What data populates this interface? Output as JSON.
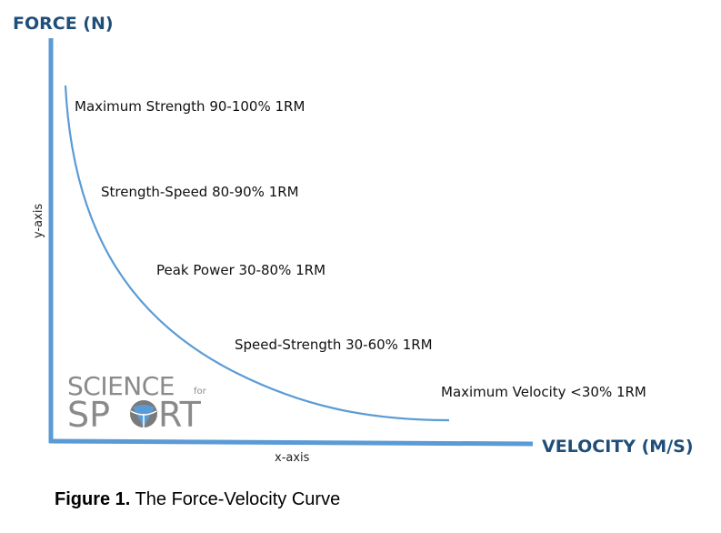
{
  "chart_data": {
    "type": "line",
    "ylabel": "FORCE (N)",
    "xlabel": "VELOCITY (M/S)",
    "y_axis_sub": "y-axis",
    "x_axis_sub": "x-axis",
    "curve_color": "#5b9bd5",
    "axis_color": "#5b9bd5",
    "title_color": "#1f4e79",
    "annotations": [
      {
        "text": "Maximum Strength 90-100% 1RM"
      },
      {
        "text": "Strength-Speed 80-90% 1RM"
      },
      {
        "text": "Peak Power 30-80% 1RM"
      },
      {
        "text": "Speed-Strength 30-60% 1RM"
      },
      {
        "text": "Maximum Velocity <30% 1RM"
      }
    ]
  },
  "logo": {
    "line1": "SCIENCE",
    "small": "for",
    "line2a": "SP",
    "line2b": "RT"
  },
  "caption": {
    "bold": "Figure 1.",
    "rest": " The Force-Velocity Curve"
  }
}
